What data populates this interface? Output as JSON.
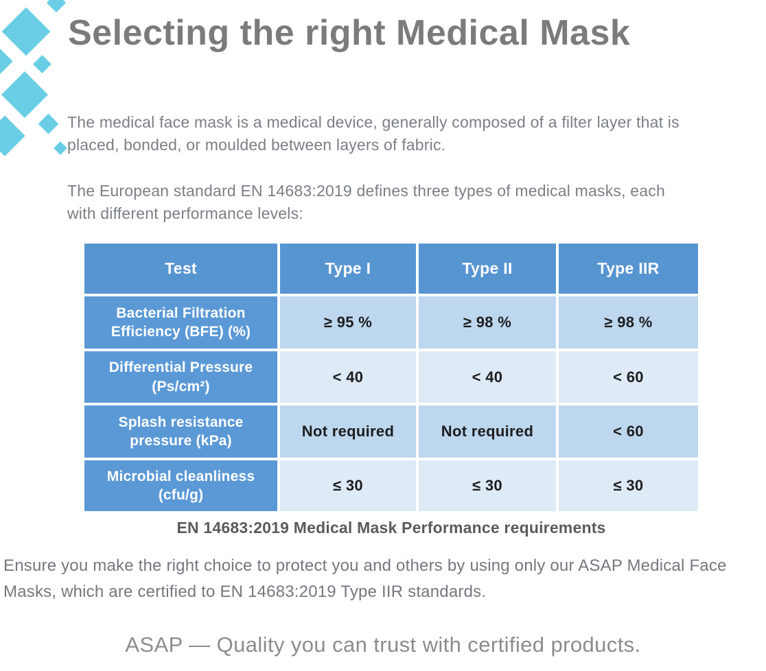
{
  "page": {
    "title": "Selecting the right Medical Mask"
  },
  "intro": {
    "paragraph1": "The medical face mask is a medical device, generally composed of a filter layer that is placed, bonded, or moulded between layers of fabric.",
    "paragraph2": "The European standard EN 14683:2019 defines three types of medical masks, each with different performance levels:"
  },
  "table": {
    "headers": [
      "Test",
      "Type I",
      "Type II",
      "Type IIR"
    ],
    "rows": [
      {
        "label": "Bacterial Filtration Efficiency (BFE) (%)",
        "values": [
          "≥ 95 %",
          "≥ 98 %",
          "≥ 98 %"
        ]
      },
      {
        "label": "Differential Pressure (Ps/cm²)",
        "values": [
          "< 40",
          "< 40",
          "< 60"
        ]
      },
      {
        "label": "Splash resistance pressure (kPa)",
        "values": [
          "Not required",
          "Not required",
          "< 60"
        ]
      },
      {
        "label": "Microbial cleanliness (cfu/g)",
        "values": [
          "≤ 30",
          "≤ 30",
          "≤ 30"
        ]
      }
    ],
    "caption": "EN 14683:2019 Medical Mask Performance requirements"
  },
  "body_text": {
    "ensure": "Ensure you make the right choice to protect you and others by using only our ASAP Medical Face Masks, which are certified to EN 14683:2019 Type IIR standards."
  },
  "footer": {
    "tagline": "ASAP — Quality you can trust with certified products."
  },
  "colors": {
    "accent_cyan": "#69cee5",
    "header_blue": "#5795d1",
    "label_blue": "#5b99d6",
    "row_blue_dark": "#bdd7ee",
    "row_blue_light": "#deeaf6",
    "title_gray": "#7b7b7b"
  }
}
